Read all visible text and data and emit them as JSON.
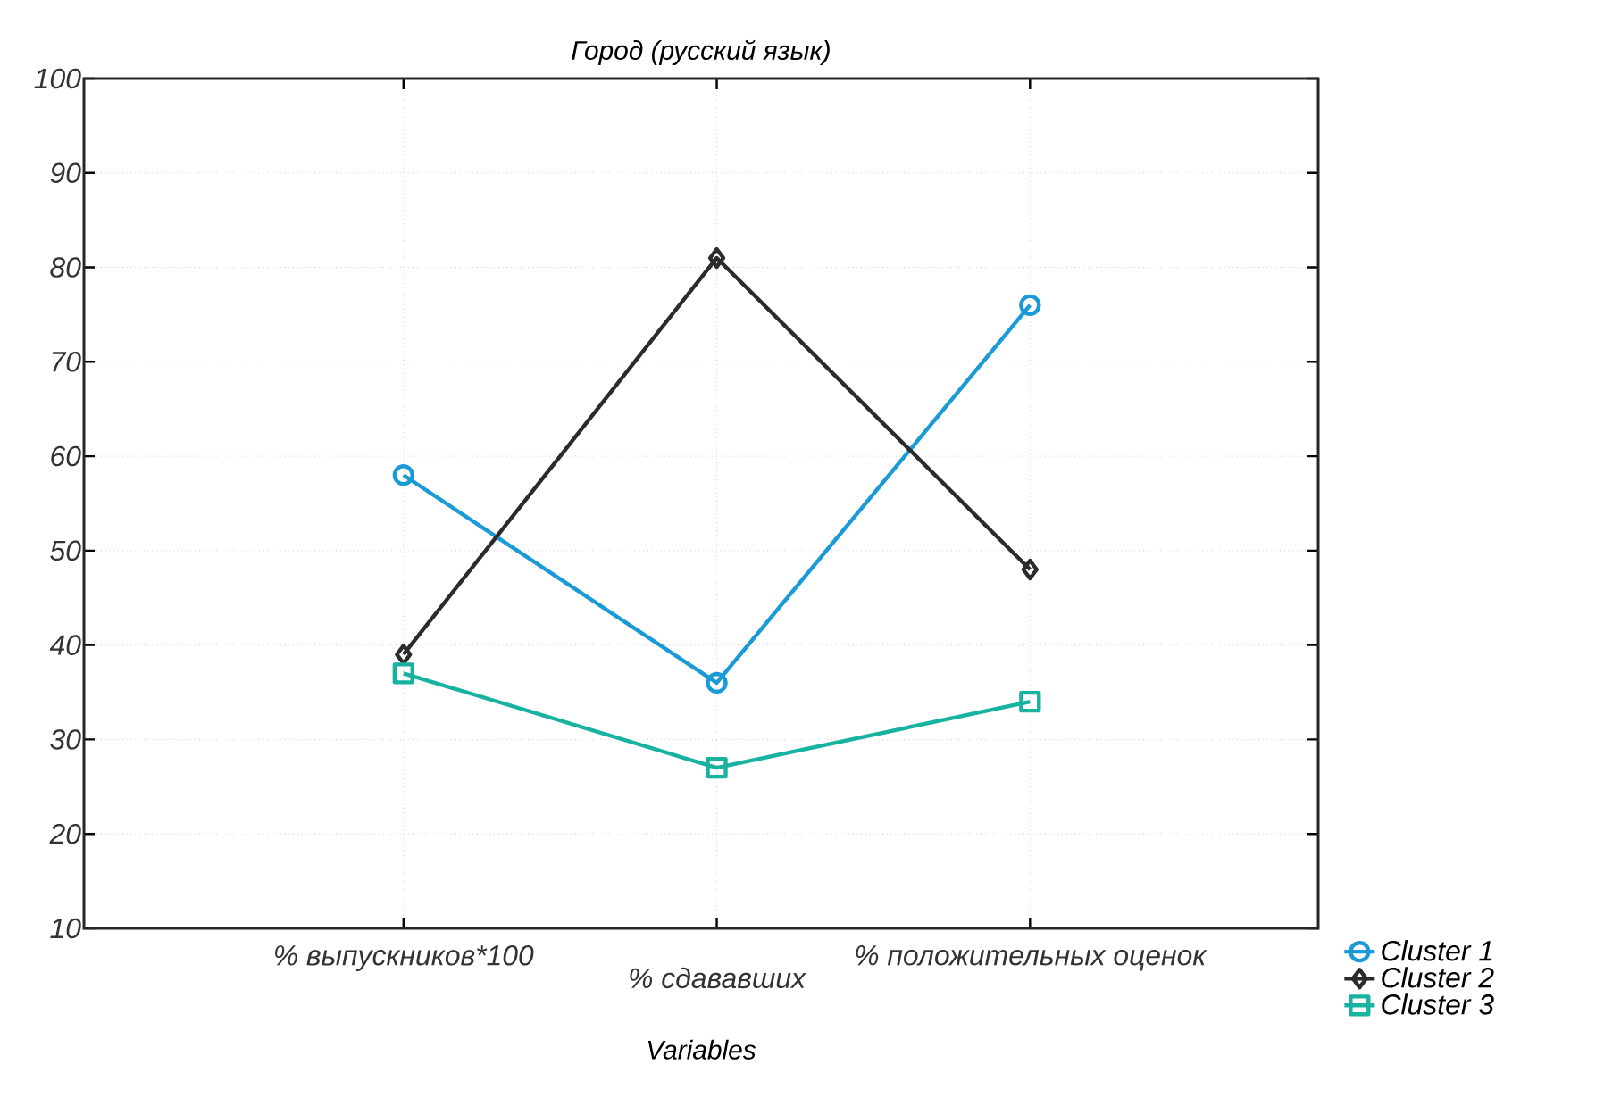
{
  "chart_data": {
    "type": "line",
    "title": "Город (русский язык)",
    "xlabel": "Variables",
    "categories": [
      "% выпускников*100",
      "% сдававших",
      "% положительных оценок"
    ],
    "series": [
      {
        "name": "Cluster 1",
        "color": "#1a9ad6",
        "marker": "circle",
        "values": [
          58,
          36,
          76
        ]
      },
      {
        "name": "Cluster 2",
        "color": "#2b2b2b",
        "marker": "diamond",
        "values": [
          39,
          81,
          48
        ]
      },
      {
        "name": "Cluster 3",
        "color": "#17b3a0",
        "marker": "square",
        "values": [
          37,
          27,
          34
        ]
      }
    ],
    "ylim": [
      10,
      100
    ],
    "yticks": [
      10,
      20,
      30,
      40,
      50,
      60,
      70,
      80,
      90,
      100
    ],
    "grid": true,
    "legend": "bottom right",
    "line_style": "solid"
  }
}
